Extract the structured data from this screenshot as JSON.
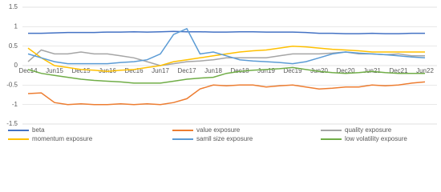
{
  "chart_data": {
    "type": "line",
    "categories": [
      "Dec14",
      null,
      "Jun15",
      null,
      "Dec15",
      null,
      "Jun16",
      null,
      "Dec16",
      null,
      "Jun17",
      null,
      "Dec17",
      null,
      "Jun18",
      null,
      "Dec18",
      null,
      "Jun19",
      null,
      "Dec19",
      null,
      "Jun20",
      null,
      "Dec20",
      null,
      "Jun21",
      null,
      "Dec21",
      null,
      "Jun22"
    ],
    "ylim": [
      -1.5,
      1.5
    ],
    "yticks": [
      -1.5,
      -1,
      -0.5,
      0,
      0.5,
      1,
      1.5
    ],
    "grid": true,
    "series": [
      {
        "name": "beta",
        "color": "#4472c4",
        "values": [
          0.83,
          0.83,
          0.84,
          0.85,
          0.85,
          0.85,
          0.86,
          0.86,
          0.87,
          0.86,
          0.87,
          0.88,
          0.87,
          0.87,
          0.86,
          0.86,
          0.87,
          0.87,
          0.86,
          0.86,
          0.86,
          0.85,
          0.83,
          0.83,
          0.82,
          0.82,
          0.83,
          0.82,
          0.82,
          0.83,
          0.83
        ]
      },
      {
        "name": "value exposure",
        "color": "#ed7d31",
        "values": [
          -0.72,
          -0.7,
          -0.95,
          -1.0,
          -0.98,
          -1.0,
          -1.0,
          -0.98,
          -1.0,
          -0.98,
          -1.0,
          -0.95,
          -0.85,
          -0.6,
          -0.5,
          -0.52,
          -0.5,
          -0.5,
          -0.55,
          -0.52,
          -0.5,
          -0.55,
          -0.6,
          -0.58,
          -0.55,
          -0.55,
          -0.5,
          -0.52,
          -0.5,
          -0.45,
          -0.42
        ]
      },
      {
        "name": "quality exposure",
        "color": "#a5a5a5",
        "values": [
          0.1,
          0.4,
          0.3,
          0.3,
          0.35,
          0.3,
          0.3,
          0.25,
          0.2,
          0.1,
          0.0,
          0.05,
          0.1,
          0.12,
          0.15,
          0.2,
          0.2,
          0.2,
          0.2,
          0.25,
          0.3,
          0.3,
          0.3,
          0.32,
          0.35,
          0.3,
          0.3,
          0.28,
          0.3,
          0.25,
          0.25
        ]
      },
      {
        "name": "momentum exposure",
        "color": "#ffc000",
        "values": [
          0.45,
          0.2,
          0.0,
          -0.05,
          -0.1,
          -0.12,
          -0.15,
          -0.12,
          -0.1,
          -0.05,
          0.0,
          0.1,
          0.15,
          0.2,
          0.25,
          0.3,
          0.35,
          0.38,
          0.4,
          0.45,
          0.5,
          0.48,
          0.45,
          0.42,
          0.4,
          0.38,
          0.35,
          0.35,
          0.35,
          0.35,
          0.35
        ]
      },
      {
        "name": "samll size exposure",
        "color": "#5b9bd5",
        "values": [
          0.3,
          0.2,
          0.1,
          0.05,
          0.05,
          0.05,
          0.05,
          0.08,
          0.1,
          0.15,
          0.3,
          0.8,
          0.95,
          0.3,
          0.35,
          0.25,
          0.15,
          0.12,
          0.1,
          0.08,
          0.05,
          0.1,
          0.2,
          0.3,
          0.35,
          0.32,
          0.3,
          0.28,
          0.25,
          0.22,
          0.2
        ]
      },
      {
        "name": "low volatility exposure",
        "color": "#70ad47",
        "values": [
          -0.1,
          -0.2,
          -0.25,
          -0.3,
          -0.35,
          -0.38,
          -0.4,
          -0.42,
          -0.45,
          -0.45,
          -0.45,
          -0.4,
          -0.35,
          -0.32,
          -0.3,
          -0.2,
          -0.15,
          -0.12,
          -0.1,
          -0.08,
          -0.05,
          -0.1,
          -0.15,
          -0.18,
          -0.2,
          -0.18,
          -0.15,
          -0.18,
          -0.2,
          -0.2,
          -0.2
        ]
      }
    ]
  }
}
